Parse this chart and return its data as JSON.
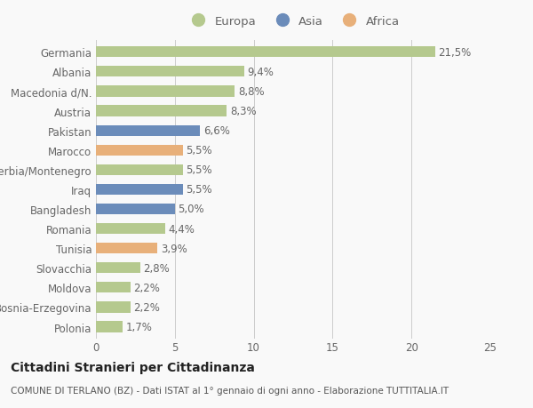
{
  "countries": [
    "Germania",
    "Albania",
    "Macedonia d/N.",
    "Austria",
    "Pakistan",
    "Marocco",
    "Serbia/Montenegro",
    "Iraq",
    "Bangladesh",
    "Romania",
    "Tunisia",
    "Slovacchia",
    "Moldova",
    "Bosnia-Erzegovina",
    "Polonia"
  ],
  "values": [
    21.5,
    9.4,
    8.8,
    8.3,
    6.6,
    5.5,
    5.5,
    5.5,
    5.0,
    4.4,
    3.9,
    2.8,
    2.2,
    2.2,
    1.7
  ],
  "labels": [
    "21,5%",
    "9,4%",
    "8,8%",
    "8,3%",
    "6,6%",
    "5,5%",
    "5,5%",
    "5,5%",
    "5,0%",
    "4,4%",
    "3,9%",
    "2,8%",
    "2,2%",
    "2,2%",
    "1,7%"
  ],
  "continents": [
    "Europa",
    "Europa",
    "Europa",
    "Europa",
    "Asia",
    "Africa",
    "Europa",
    "Asia",
    "Asia",
    "Europa",
    "Africa",
    "Europa",
    "Europa",
    "Europa",
    "Europa"
  ],
  "colors": {
    "Europa": "#b5c98e",
    "Asia": "#6b8cba",
    "Africa": "#e8b07a"
  },
  "legend": [
    "Europa",
    "Asia",
    "Africa"
  ],
  "legend_colors": [
    "#b5c98e",
    "#6b8cba",
    "#e8b07a"
  ],
  "xlim": [
    0,
    25
  ],
  "xticks": [
    0,
    5,
    10,
    15,
    20,
    25
  ],
  "title": "Cittadini Stranieri per Cittadinanza",
  "subtitle": "COMUNE DI TERLANO (BZ) - Dati ISTAT al 1° gennaio di ogni anno - Elaborazione TUTTITALIA.IT",
  "background_color": "#f9f9f9",
  "bar_height": 0.55,
  "label_fontsize": 8.5,
  "tick_fontsize": 8.5,
  "title_fontsize": 10,
  "subtitle_fontsize": 7.5
}
